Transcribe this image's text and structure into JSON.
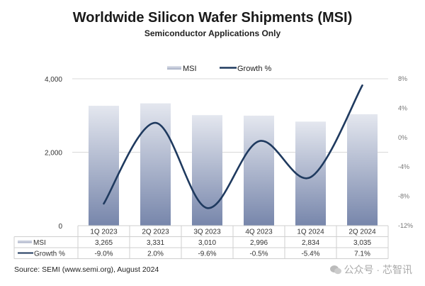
{
  "chart_data": {
    "type": "bar+line",
    "title": "Worldwide Silicon Wafer Shipments (MSI)",
    "subtitle": "Semiconductor Applications Only",
    "categories": [
      "1Q 2023",
      "2Q 2023",
      "3Q 2023",
      "4Q 2023",
      "1Q 2024",
      "2Q 2024"
    ],
    "series": [
      {
        "name": "MSI",
        "type": "bar",
        "axis": "left",
        "values": [
          3265,
          3331,
          3010,
          2996,
          2834,
          3035
        ],
        "labels": [
          "3,265",
          "3,331",
          "3,010",
          "2,996",
          "2,834",
          "3,035"
        ]
      },
      {
        "name": "Growth %",
        "type": "line",
        "axis": "right",
        "values": [
          -9.0,
          2.0,
          -9.6,
          -0.5,
          -5.4,
          7.1
        ],
        "labels": [
          "-9.0%",
          "2.0%",
          "-9.6%",
          "-0.5%",
          "-5.4%",
          "7.1%"
        ]
      }
    ],
    "left_axis": {
      "range": [
        0,
        4000
      ],
      "ticks": [
        0,
        2000,
        4000
      ],
      "tick_labels": [
        "0",
        "2,000",
        "4,000"
      ]
    },
    "right_axis": {
      "range": [
        -12,
        8
      ],
      "ticks": [
        8,
        4,
        0,
        -4,
        -8,
        -12
      ],
      "tick_labels": [
        "8%",
        "4%",
        "0%",
        "-4%",
        "-8%",
        "-12%"
      ]
    },
    "legend": {
      "placement": "top",
      "entries": [
        "MSI",
        "Growth %"
      ]
    },
    "data_table": {
      "row_labels": [
        "MSI",
        "Growth %"
      ]
    },
    "grid": true,
    "colors": {
      "bar_top": "#e3e6ef",
      "bar_bottom": "#7a89ad",
      "line": "#1f3a5f",
      "grid": "#d8d8d8"
    }
  },
  "source": "Source: SEMI (www.semi.org), August 2024",
  "watermark": "公众号 · 芯智讯"
}
